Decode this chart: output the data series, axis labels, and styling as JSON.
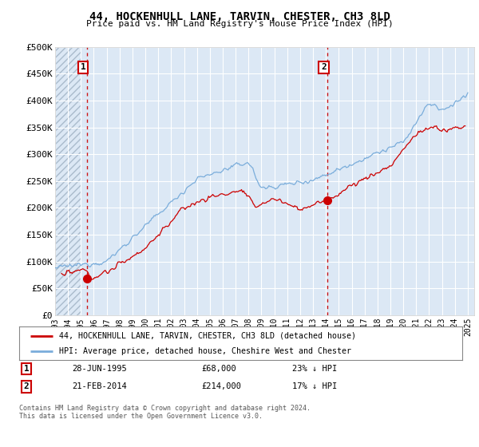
{
  "title": "44, HOCKENHULL LANE, TARVIN, CHESTER, CH3 8LD",
  "subtitle": "Price paid vs. HM Land Registry's House Price Index (HPI)",
  "xlim_start": 1993.0,
  "xlim_end": 2025.5,
  "ylim": [
    0,
    500000
  ],
  "yticks": [
    0,
    50000,
    100000,
    150000,
    200000,
    250000,
    300000,
    350000,
    400000,
    450000,
    500000
  ],
  "ytick_labels": [
    "£0",
    "£50K",
    "£100K",
    "£150K",
    "£200K",
    "£250K",
    "£300K",
    "£350K",
    "£400K",
    "£450K",
    "£500K"
  ],
  "xticks": [
    1993,
    1994,
    1995,
    1996,
    1997,
    1998,
    1999,
    2000,
    2001,
    2002,
    2003,
    2004,
    2005,
    2006,
    2007,
    2008,
    2009,
    2010,
    2011,
    2012,
    2013,
    2014,
    2015,
    2016,
    2017,
    2018,
    2019,
    2020,
    2021,
    2022,
    2023,
    2024,
    2025
  ],
  "sale1_x": 1995.484,
  "sale1_y": 68000,
  "sale1_label": "1",
  "sale1_date": "28-JUN-1995",
  "sale1_price": "£68,000",
  "sale1_hpi": "23% ↓ HPI",
  "sale2_x": 2014.127,
  "sale2_y": 214000,
  "sale2_label": "2",
  "sale2_date": "21-FEB-2014",
  "sale2_price": "£214,000",
  "sale2_hpi": "17% ↓ HPI",
  "house_color": "#cc0000",
  "hpi_color": "#7aaddb",
  "legend1": "44, HOCKENHULL LANE, TARVIN, CHESTER, CH3 8LD (detached house)",
  "legend2": "HPI: Average price, detached house, Cheshire West and Chester",
  "footnote": "Contains HM Land Registry data © Crown copyright and database right 2024.\nThis data is licensed under the Open Government Licence v3.0.",
  "background_color": "#dce8f5",
  "grid_color": "#ffffff"
}
